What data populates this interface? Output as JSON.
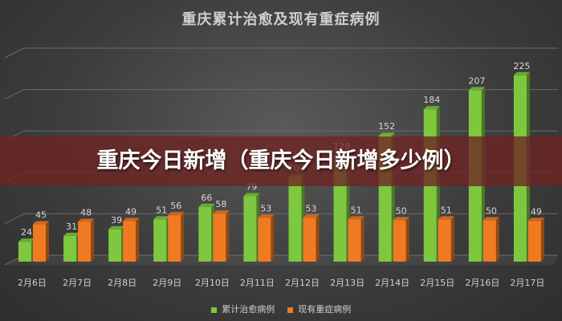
{
  "chart_data": {
    "type": "bar",
    "title": "重庆累计治愈及现有重症病例",
    "categories": [
      "2月6日",
      "2月7日",
      "2月8日",
      "2月9日",
      "2月10日",
      "2月11日",
      "2月12日",
      "2月13日",
      "2月14日",
      "2月15日",
      "2月16日",
      "2月17日"
    ],
    "series": [
      {
        "name": "累计治愈病例",
        "color": "#7ec83f",
        "values": [
          24,
          31,
          39,
          51,
          66,
          79,
          102,
          128,
          152,
          184,
          207,
          225
        ]
      },
      {
        "name": "现有重症病例",
        "color": "#f07a22",
        "values": [
          45,
          48,
          49,
          56,
          58,
          53,
          53,
          51,
          50,
          51,
          50,
          49
        ]
      }
    ],
    "ylim": [
      0,
      250
    ],
    "grid": true,
    "legend": "bottom"
  },
  "banner": {
    "text": "重庆今日新增（重庆今日新增多少例）"
  }
}
